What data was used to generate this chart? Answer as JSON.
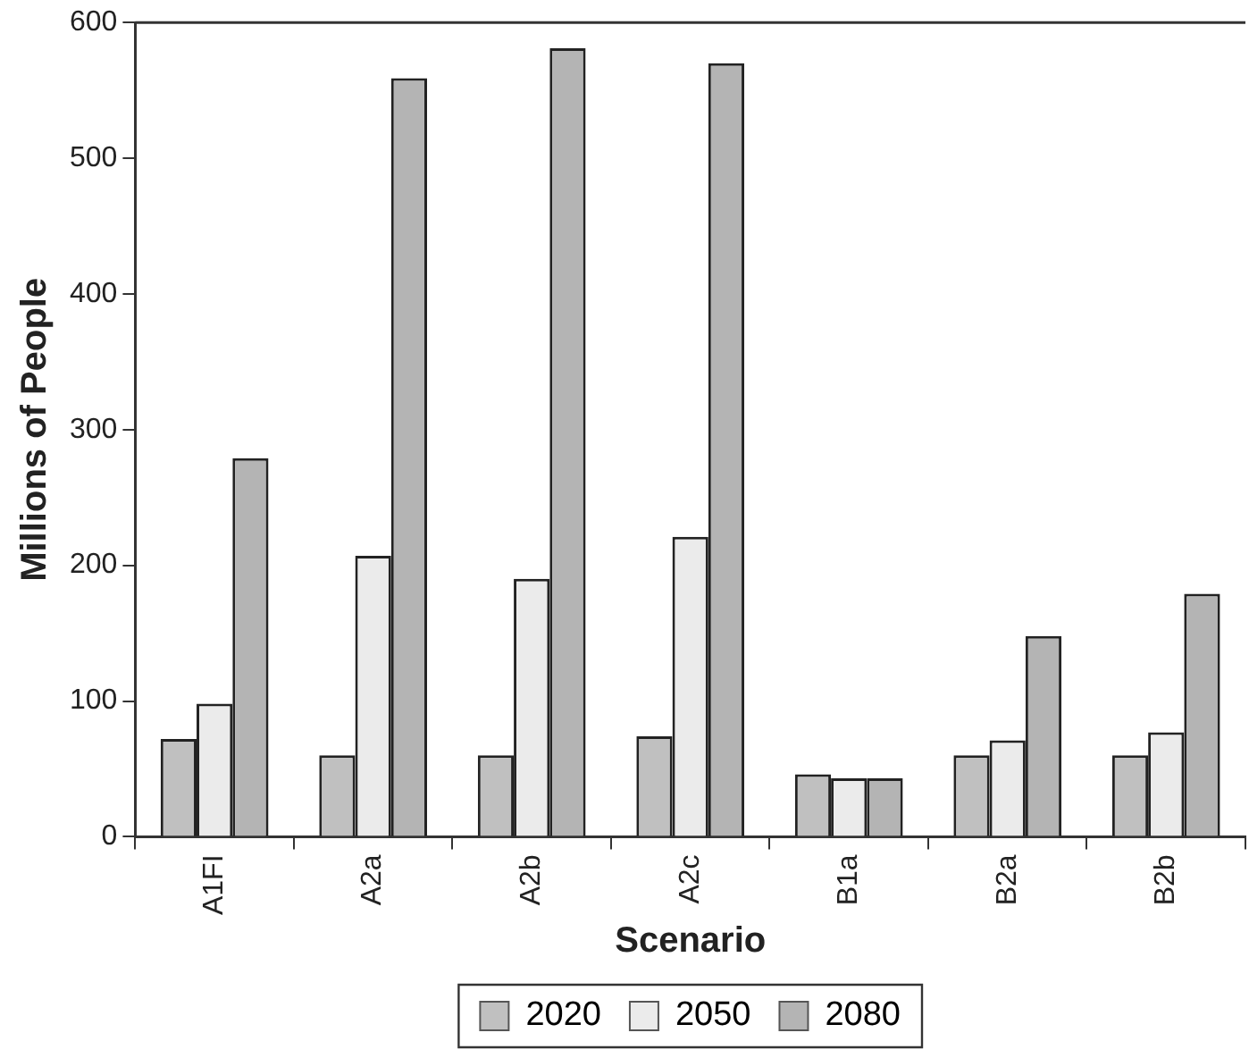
{
  "chart_data": {
    "type": "bar",
    "xlabel": "Scenario",
    "ylabel": "Millions of People",
    "categories": [
      "A1FI",
      "A2a",
      "A2b",
      "A2c",
      "B1a",
      "B2a",
      "B2b"
    ],
    "series": [
      {
        "name": "2020",
        "color": "#c0c0c0",
        "values": [
          72,
          60,
          60,
          74,
          46,
          60,
          60
        ]
      },
      {
        "name": "2050",
        "color": "#ebebeb",
        "values": [
          98,
          207,
          190,
          221,
          43,
          71,
          77
        ]
      },
      {
        "name": "2080",
        "color": "#b4b4b4",
        "values": [
          279,
          559,
          581,
          570,
          43,
          148,
          179
        ]
      }
    ],
    "ylim": [
      0,
      600
    ],
    "yticks": [
      0,
      100,
      200,
      300,
      400,
      500,
      600
    ],
    "grid": false,
    "legend": "bottom"
  }
}
